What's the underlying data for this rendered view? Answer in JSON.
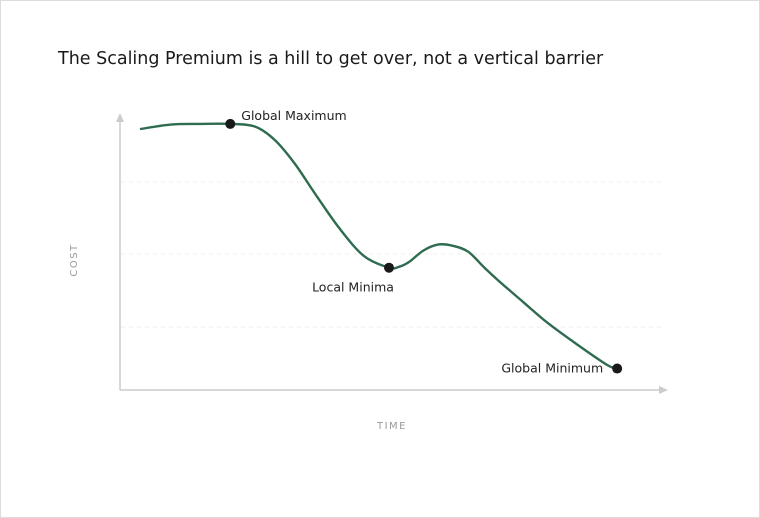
{
  "title": "The Scaling Premium is a hill to get over, not a vertical barrier",
  "chart_data": {
    "type": "line",
    "title": "The Scaling Premium is a hill to get over, not a vertical barrier",
    "xlabel": "TIME",
    "ylabel": "COST",
    "xlim": [
      0,
      100
    ],
    "ylim": [
      0,
      100
    ],
    "grid": "horizontal dashed",
    "line_color": "#2e6b4f",
    "marker_color": "#1a1a1a",
    "series": [
      {
        "x": [
          0,
          6,
          12,
          18,
          23,
          27,
          31,
          35,
          40,
          45,
          50,
          52,
          54,
          57,
          60,
          63,
          66,
          69,
          72,
          77,
          82,
          88,
          94,
          96
        ],
        "values": [
          88.8,
          90.3,
          90.5,
          90.5,
          89.6,
          85,
          77,
          67,
          55,
          45.5,
          41.6,
          41.9,
          43.5,
          47.5,
          49.5,
          49,
          47,
          42,
          37.3,
          30,
          22.8,
          15.4,
          8.5,
          7.3
        ]
      }
    ],
    "annotations": [
      {
        "label": "Global Maximum",
        "x": 18,
        "y": 90.5
      },
      {
        "label": "Local Minima",
        "x": 50,
        "y": 41.6
      },
      {
        "label": "Global Minimum",
        "x": 96,
        "y": 7.3
      }
    ]
  }
}
